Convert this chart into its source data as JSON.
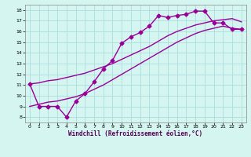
{
  "line1_x": [
    0,
    1,
    2,
    3,
    4,
    5,
    6,
    7,
    8,
    9,
    10,
    11,
    12,
    13,
    14,
    15,
    16,
    17,
    18,
    19,
    20,
    21,
    22,
    23
  ],
  "line1_y": [
    11.1,
    9.0,
    9.0,
    9.0,
    8.0,
    9.5,
    10.2,
    11.3,
    12.5,
    13.3,
    14.9,
    15.5,
    15.9,
    16.5,
    17.5,
    17.3,
    17.5,
    17.6,
    17.9,
    17.9,
    16.8,
    16.8,
    16.2,
    16.2
  ],
  "line2_x": [
    0,
    1,
    2,
    3,
    4,
    5,
    6,
    7,
    8,
    9,
    10,
    11,
    12,
    13,
    14,
    15,
    16,
    17,
    18,
    19,
    20,
    21,
    22,
    23
  ],
  "line2_y": [
    11.1,
    11.2,
    11.4,
    11.5,
    11.7,
    11.9,
    12.1,
    12.4,
    12.7,
    13.0,
    13.4,
    13.8,
    14.2,
    14.6,
    15.1,
    15.6,
    16.0,
    16.3,
    16.6,
    16.8,
    17.0,
    17.1,
    17.2,
    16.9
  ],
  "line3_x": [
    0,
    1,
    2,
    3,
    4,
    5,
    6,
    7,
    8,
    9,
    10,
    11,
    12,
    13,
    14,
    15,
    16,
    17,
    18,
    19,
    20,
    21,
    22,
    23
  ],
  "line3_y": [
    9.0,
    9.2,
    9.4,
    9.5,
    9.7,
    9.9,
    10.2,
    10.6,
    11.0,
    11.5,
    12.0,
    12.5,
    13.0,
    13.5,
    14.0,
    14.5,
    15.0,
    15.4,
    15.8,
    16.1,
    16.3,
    16.5,
    16.3,
    16.2
  ],
  "color": "#990099",
  "bg_color": "#d5f5f0",
  "grid_color": "#aadddd",
  "xlabel": "Windchill (Refroidissement éolien,°C)",
  "xlim": [
    -0.5,
    23.5
  ],
  "ylim": [
    7.5,
    18.5
  ],
  "xticks": [
    0,
    1,
    2,
    3,
    4,
    5,
    6,
    7,
    8,
    9,
    10,
    11,
    12,
    13,
    14,
    15,
    16,
    17,
    18,
    19,
    20,
    21,
    22,
    23
  ],
  "yticks": [
    8,
    9,
    10,
    11,
    12,
    13,
    14,
    15,
    16,
    17,
    18
  ],
  "marker": "D",
  "markersize": 2.5,
  "linewidth": 1.0
}
